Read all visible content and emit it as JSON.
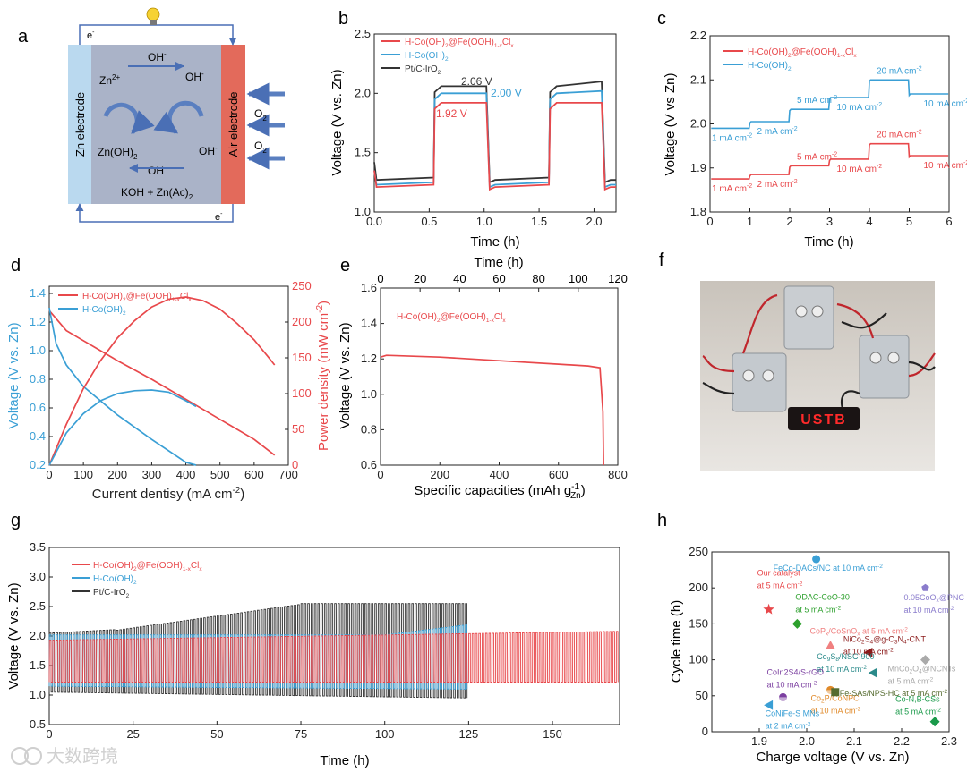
{
  "colors": {
    "red": "#e8484b",
    "blue": "#3a9fd5",
    "black": "#333333",
    "schematic_bg": "#aab3c8",
    "zn": "#bad9ef",
    "air": "#e36a5b",
    "arrow": "#5a7fc0",
    "brown": "#a0522d"
  },
  "watermark": "大数跨境",
  "panel_a": {
    "label": "a",
    "zn_electrode": "Zn electrode",
    "air_electrode": "Air electrode",
    "e_top": "e",
    "e_bottom": "e",
    "e_sup": "-",
    "oh_top": "OH",
    "oh_sup": "-",
    "zn2": "Zn",
    "zn2_sup": "2+",
    "oh_right1": "OH",
    "oh_right2": "OH",
    "znoh2": "Zn(OH)",
    "znoh2_sub": "2",
    "oh_bottom": "OH",
    "electrolyte": "KOH + Zn(Ac)",
    "electrolyte_sub": "2",
    "o2_top": "O",
    "o2_bottom": "O",
    "o2_sub": "2"
  },
  "chart_data": [
    {
      "panel": "b",
      "type": "line",
      "xlabel": "Time (h)",
      "ylabel": "Voltage (V vs. Zn)",
      "xlim": [
        0,
        2.2
      ],
      "ylim": [
        1.0,
        2.5
      ],
      "xticks": [
        "0.0",
        "0.5",
        "1.0",
        "1.5",
        "2.0"
      ],
      "yticks": [
        "1.0",
        "1.5",
        "2.0",
        "2.5"
      ],
      "legend": [
        {
          "name": "H-Co(OH)",
          "sub": "2",
          "mid": "@Fe(OOH)",
          "sub2": "1-x",
          "end": "Cl",
          "sub3": "x",
          "color": "red"
        },
        {
          "name": "H-Co(OH)",
          "sub": "2",
          "color": "blue"
        },
        {
          "name": "Pt/C-IrO",
          "sub": "2",
          "color": "black"
        }
      ],
      "annotations": [
        {
          "text": "2.06 V",
          "color": "black"
        },
        {
          "text": "2.00 V",
          "color": "blue"
        },
        {
          "text": "1.92 V",
          "color": "red"
        }
      ],
      "series": [
        {
          "name": "Pt/C-IrO2",
          "color": "black",
          "discharge": 1.27,
          "charge": [
            2.06,
            2.1
          ]
        },
        {
          "name": "H-Co(OH)2",
          "color": "blue",
          "discharge": 1.23,
          "charge": [
            2.0,
            2.02
          ]
        },
        {
          "name": "H-Co(OH)2@Fe(OOH)1-xClx",
          "color": "red",
          "discharge": 1.21,
          "charge": [
            1.92,
            1.92
          ]
        }
      ],
      "cycles": [
        [
          0.55,
          1.05
        ],
        [
          1.6,
          2.1
        ]
      ]
    },
    {
      "panel": "c",
      "type": "line",
      "xlabel": "Time (h)",
      "ylabel": "Voltage (V vs Zn)",
      "xlim": [
        0,
        6
      ],
      "ylim": [
        1.8,
        2.2
      ],
      "xticks": [
        "0",
        "1",
        "2",
        "3",
        "4",
        "5",
        "6"
      ],
      "yticks": [
        "1.8",
        "1.9",
        "2.0",
        "2.1",
        "2.2"
      ],
      "legend": [
        {
          "name": "H-Co(OH)",
          "sub": "2",
          "mid": "@Fe(OOH)",
          "sub2": "1-x",
          "end": "Cl",
          "sub3": "x",
          "color": "red"
        },
        {
          "name": "H-Co(OH)",
          "sub": "2",
          "color": "blue"
        }
      ],
      "steps": [
        {
          "t0": 0,
          "t1": 1,
          "blue": 1.99,
          "red": 1.875,
          "label": "1 mA cm",
          "lsup": "-2"
        },
        {
          "t0": 1,
          "t1": 2,
          "blue": 2.005,
          "red": 1.885,
          "label": "2 mA cm",
          "lsup": "-2"
        },
        {
          "t0": 2,
          "t1": 3,
          "blue": 2.033,
          "red": 1.905,
          "label": "5 mA cm",
          "lsup": "-2"
        },
        {
          "t0": 3,
          "t1": 4,
          "blue": 2.06,
          "red": 1.92,
          "label": "10 mA cm",
          "lsup": "-2"
        },
        {
          "t0": 4,
          "t1": 5,
          "blue": 2.1,
          "red": 1.955,
          "label": "20 mA cm",
          "lsup": "-2"
        },
        {
          "t0": 5,
          "t1": 6,
          "blue": 2.068,
          "red": 1.928,
          "label": "10 mA cm",
          "lsup": "-2"
        }
      ]
    },
    {
      "panel": "d",
      "type": "line",
      "xlabel": "Current dentisy (mA cm",
      "xlabel_sup": "-2",
      "xlabel_end": ")",
      "ylabel": "Voltage (V vs. Zn)",
      "ylabel2": "Power density (mW cm",
      "ylabel2_sup": "-2",
      "ylabel2_end": ")",
      "xlim": [
        0,
        700
      ],
      "ylim": [
        0.2,
        1.45
      ],
      "y2lim": [
        0,
        250
      ],
      "xticks": [
        "0",
        "100",
        "200",
        "300",
        "400",
        "500",
        "600",
        "700"
      ],
      "yticks": [
        "0.2",
        "0.4",
        "0.6",
        "0.8",
        "1.0",
        "1.2",
        "1.4"
      ],
      "y2ticks": [
        "0",
        "50",
        "100",
        "150",
        "200",
        "250"
      ],
      "legend": [
        {
          "name": "H-Co(OH)",
          "sub": "2",
          "mid": "@Fe(OOH)",
          "sub2": "1-x",
          "end": "Cl",
          "sub3": "x",
          "color": "red"
        },
        {
          "name": "H-Co(OH)",
          "sub": "2",
          "color": "blue"
        }
      ],
      "series": [
        {
          "name": "red voltage",
          "color": "red",
          "x": [
            0,
            50,
            100,
            200,
            300,
            400,
            500,
            600,
            660
          ],
          "y": [
            1.28,
            1.14,
            1.07,
            0.93,
            0.8,
            0.66,
            0.52,
            0.38,
            0.27
          ]
        },
        {
          "name": "blue voltage",
          "color": "blue",
          "x": [
            0,
            20,
            50,
            100,
            200,
            300,
            400,
            430
          ],
          "y": [
            1.3,
            1.05,
            0.9,
            0.75,
            0.55,
            0.38,
            0.22,
            0.2
          ]
        },
        {
          "name": "red power",
          "color": "red",
          "x": [
            0,
            50,
            100,
            150,
            200,
            250,
            300,
            350,
            400,
            450,
            500,
            550,
            600,
            640,
            660
          ],
          "y": [
            0,
            57,
            107,
            146,
            178,
            202,
            221,
            232,
            235,
            230,
            218,
            198,
            175,
            152,
            140
          ]
        },
        {
          "name": "blue power",
          "color": "blue",
          "x": [
            0,
            50,
            100,
            150,
            200,
            250,
            300,
            350,
            400,
            430
          ],
          "y": [
            0,
            45,
            72,
            90,
            100,
            104,
            105,
            102,
            90,
            82
          ]
        }
      ]
    },
    {
      "panel": "e",
      "type": "line",
      "xlabel": "Specific capacities (mAh g",
      "xlabel_sup": "-1",
      "xlabel_sub": "Zn",
      "xlabel_end": ")",
      "ylabel": "Voltage (V vs. Zn)",
      "xlim": [
        0,
        800
      ],
      "ylim": [
        0.6,
        1.6
      ],
      "top_xlim": [
        0,
        120
      ],
      "xticks": [
        "0",
        "200",
        "400",
        "600",
        "800"
      ],
      "top_xticks": [
        "0",
        "20",
        "40",
        "60",
        "80",
        "100",
        "120"
      ],
      "yticks": [
        "0.6",
        "0.8",
        "1.0",
        "1.2",
        "1.4",
        "1.6"
      ],
      "label": {
        "name": "H-Co(OH)",
        "sub": "2",
        "mid": "@Fe(OOH)",
        "sub2": "1-x",
        "end": "Cl",
        "sub3": "x"
      },
      "series": [
        {
          "color": "red",
          "x": [
            0,
            20,
            200,
            400,
            600,
            700,
            740,
            750,
            752
          ],
          "y": [
            1.21,
            1.22,
            1.21,
            1.19,
            1.17,
            1.16,
            1.15,
            0.9,
            0.6
          ]
        }
      ]
    },
    {
      "panel": "g",
      "type": "line",
      "xlabel": "Time (h)",
      "ylabel": "Voltage (V vs. Zn)",
      "xlim": [
        0,
        170
      ],
      "ylim": [
        0.5,
        3.5
      ],
      "xticks": [
        "0",
        "25",
        "50",
        "75",
        "100",
        "125",
        "150"
      ],
      "yticks": [
        "0.5",
        "1.0",
        "1.5",
        "2.0",
        "2.5",
        "3.0",
        "3.5"
      ],
      "legend": [
        {
          "name": "H-Co(OH)",
          "sub": "2",
          "mid": "@Fe(OOH)",
          "sub2": "1-x",
          "end": "Cl",
          "sub3": "x",
          "color": "red"
        },
        {
          "name": "H-Co(OH)",
          "sub": "2",
          "color": "blue"
        },
        {
          "name": "Pt/C-IrO",
          "sub": "2",
          "color": "black"
        }
      ],
      "series": [
        {
          "name": "Pt/C-IrO2",
          "color": "black",
          "t_end": 125,
          "low": [
            1.05,
            0.95
          ],
          "high": [
            2.05,
            2.55
          ]
        },
        {
          "name": "H-Co(OH)2",
          "color": "blue",
          "t_end": 125,
          "low": [
            1.15,
            1.1
          ],
          "high": [
            2.0,
            2.2
          ]
        },
        {
          "name": "H-Co(OH)2@Fe(OOH)1-xClx",
          "color": "red",
          "t_end": 170,
          "low": [
            1.22,
            1.22
          ],
          "high": [
            1.93,
            2.08
          ]
        }
      ]
    },
    {
      "panel": "h",
      "type": "scatter",
      "xlabel": "Charge voltage (V vs. Zn)",
      "ylabel": "Cycle time (h)",
      "xlim": [
        1.8,
        2.3
      ],
      "ylim": [
        0,
        250
      ],
      "xticks": [
        "1.9",
        "2.0",
        "2.1",
        "2.2",
        "2.3"
      ],
      "yticks": [
        "0",
        "50",
        "100",
        "150",
        "200",
        "250"
      ],
      "points": [
        {
          "x": 1.92,
          "y": 170,
          "color": "#e8484b",
          "shape": "star",
          "labels": [
            {
              "t": "Our catalyst",
              "dx": -13,
              "dy": -38
            },
            {
              "t": "at 5 mA cm",
              "s": "-2",
              "dx": -13,
              "dy": -24
            }
          ]
        },
        {
          "x": 2.02,
          "y": 240,
          "color": "#3a9fd5",
          "shape": "circle",
          "labels": [
            {
              "t": "FeCo-DACs/NC at 10 mA cm",
              "s": "-2",
              "dx": -48,
              "dy": 13
            }
          ]
        },
        {
          "x": 1.98,
          "y": 150,
          "color": "#2ca02c",
          "shape": "diamond",
          "labels": [
            {
              "t": "ODAC-CoO-30",
              "dx": -2,
              "dy": -27
            },
            {
              "t": "at 5 mA cm",
              "s": "-2",
              "dx": -2,
              "dy": -13
            }
          ]
        },
        {
          "x": 2.05,
          "y": 120,
          "color": "#f08080",
          "shape": "triangle",
          "labels": [
            {
              "t": "CoP",
              "s": "x",
              "t2": "/CoSnO",
              "s2": "x",
              "t3": " at 5 mA cm",
              "s3": "-2",
              "dx": -23,
              "dy": -13
            }
          ]
        },
        {
          "x": 2.25,
          "y": 200,
          "color": "#8a7ccc",
          "shape": "pentagon",
          "labels": [
            {
              "t": "0.05CoO",
              "s": "x",
              "t2": "@PNC",
              "dx": -24,
              "dy": 14
            },
            {
              "t": "at 10 mA cm",
              "s": "-2",
              "dx": -24,
              "dy": 28
            }
          ]
        },
        {
          "x": 2.13,
          "y": 110,
          "color": "#8b1a1a",
          "shape": "tri-left",
          "labels": [
            {
              "t": "NiCo",
              "s": "2",
              "t2": "S",
              "s2": "4",
              "t3": "@g-C",
              "s3": "3",
              "t4": "N",
              "s4": "4",
              "t5": "-CNT",
              "dx": -28,
              "dy": -12
            },
            {
              "t": "at 10 mA cm",
              "s": "-2",
              "dx": -28,
              "dy": 2
            }
          ]
        },
        {
          "x": 2.14,
          "y": 82,
          "color": "#2a8a8a",
          "shape": "tri-left",
          "labels": [
            {
              "t": "Co",
              "s": "9",
              "t2": "S",
              "s2": "8",
              "t3": "/NSC-900",
              "dx": -63,
              "dy": -15
            },
            {
              "t": "at 10 mA cm",
              "s": "-2",
              "dx": -63,
              "dy": -1
            }
          ]
        },
        {
          "x": 2.25,
          "y": 100,
          "color": "#aaaaaa",
          "shape": "diamond",
          "labels": [
            {
              "t": "MnCo",
              "s": "2",
              "t2": "O",
              "s2": "4",
              "t3": "@NCNTs",
              "dx": -42,
              "dy": 13
            },
            {
              "t": "at 5 mA cm",
              "s": "-2",
              "dx": -42,
              "dy": 27
            }
          ]
        },
        {
          "x": 1.95,
          "y": 48,
          "color": "#7b3fa0",
          "shape": "circle-half",
          "labels": [
            {
              "t": "CoIn2S4/S-rGO",
              "dx": -18,
              "dy": -25
            },
            {
              "t": "at 10 mA cm",
              "s": "-2",
              "dx": -18,
              "dy": -11
            }
          ]
        },
        {
          "x": 2.05,
          "y": 58,
          "color": "#e08a2a",
          "shape": "circle-half",
          "labels": [
            {
              "t": "Co",
              "s": "2",
              "t2": "P/CoNPC",
              "dx": -22,
              "dy": 12
            },
            {
              "t": "at 10 mA cm",
              "s": "-2",
              "dx": -22,
              "dy": 26
            }
          ]
        },
        {
          "x": 2.06,
          "y": 55,
          "color": "#556b2f",
          "shape": "square",
          "labels": [
            {
              "t": "Fe-SAs/NPS-HC at 5 mA cm",
              "s": "-2",
              "dx": 5,
              "dy": 4
            }
          ]
        },
        {
          "x": 1.92,
          "y": 37,
          "color": "#3a9fd5",
          "shape": "tri-left",
          "labels": [
            {
              "t": "CoNiFe-S MNs",
              "dx": -4,
              "dy": 12
            },
            {
              "t": "at 2 mA cm",
              "s": "-2",
              "dx": -4,
              "dy": 26
            }
          ]
        },
        {
          "x": 2.27,
          "y": 14,
          "color": "#1a9a4a",
          "shape": "diamond",
          "labels": [
            {
              "t": "Co-N,B-CSs",
              "dx": -44,
              "dy": -22
            },
            {
              "t": "at 5 mA cm",
              "s": "-2",
              "dx": -44,
              "dy": -8
            }
          ]
        }
      ]
    }
  ],
  "panel_f": {
    "label": "f",
    "display_text": "USTB"
  }
}
